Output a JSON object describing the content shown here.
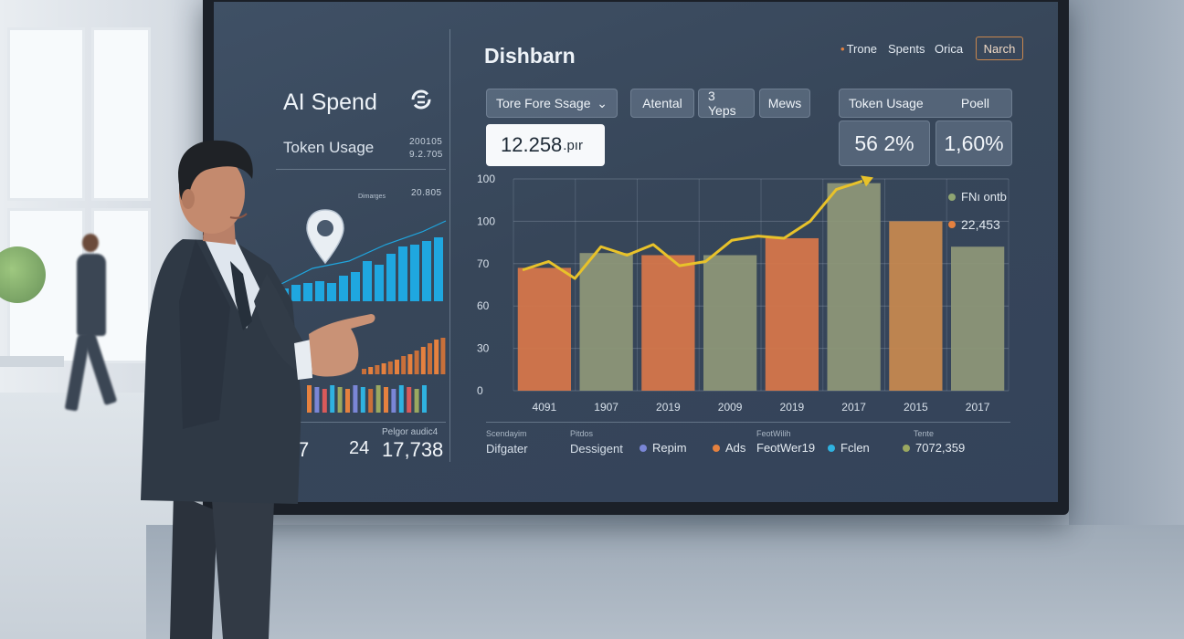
{
  "left_panel": {
    "title": "AI Spend",
    "token_label": "Token Usage",
    "small_values": [
      "200105",
      "9.2.705"
    ],
    "legend_small": "Dimarges",
    "small_value_3": "20.805",
    "bottom_label_1": "Pelgor audic4",
    "stat_left": "7",
    "stat_mid": "24",
    "stat_right": "17,738"
  },
  "dashboard": {
    "title": "Dishbarn",
    "nav": [
      "Trone",
      "Spents",
      "Orica"
    ],
    "search_label": "Narch",
    "dropdown_label": "Tore Fore Ssage",
    "pills": [
      "Atental",
      "3 Yeps",
      "Mews"
    ],
    "value_box": {
      "number": "12.258",
      "unit": ".pır"
    },
    "token_box_label": "Token Usage",
    "poll_label": "Poell",
    "stat_1": "56  2%",
    "stat_2": "1,60%"
  },
  "chart_data": {
    "type": "bar",
    "y_ticks": [
      "100",
      "100",
      "70",
      "60",
      "30",
      "0"
    ],
    "categories": [
      "4091",
      "1907",
      "2019",
      "2009",
      "2019",
      "2017",
      "2015",
      "2017"
    ],
    "values": [
      58,
      65,
      64,
      64,
      72,
      98,
      80,
      68
    ],
    "bar_colors": [
      "#d9774a",
      "#8f9878",
      "#d9774a",
      "#8f9878",
      "#d9774a",
      "#8f9878",
      "#c98a4f",
      "#8f9878"
    ],
    "trend_line": [
      57,
      61,
      53,
      68,
      64,
      69,
      59,
      61,
      71,
      73,
      72,
      80,
      95,
      99
    ],
    "legend": [
      {
        "label": "FNı ontb",
        "color": "#8fa572"
      },
      {
        "label": "22,453",
        "color": "#e5813f"
      }
    ]
  },
  "bottom_legend": {
    "col1_sub": "Scendayim",
    "col1": "Difgater",
    "col2_sub": "Pitdos",
    "col2": "Dessigent",
    "items": [
      {
        "label": "Repim",
        "color": "#7a86d6"
      },
      {
        "label": "Ads",
        "color": "#e5813f"
      },
      {
        "label": "FeotWer19",
        "color": "#2fb2e0"
      },
      {
        "label": "7072,359",
        "color": "#9aa860"
      }
    ],
    "col3_sub": "FeotWilih",
    "col4_sub": "Tente"
  },
  "colors": {
    "accent_orange": "#d9774a",
    "accent_olive": "#8f9878",
    "trend_yellow": "#e8c22a",
    "accent_blue": "#1fa7e0"
  }
}
